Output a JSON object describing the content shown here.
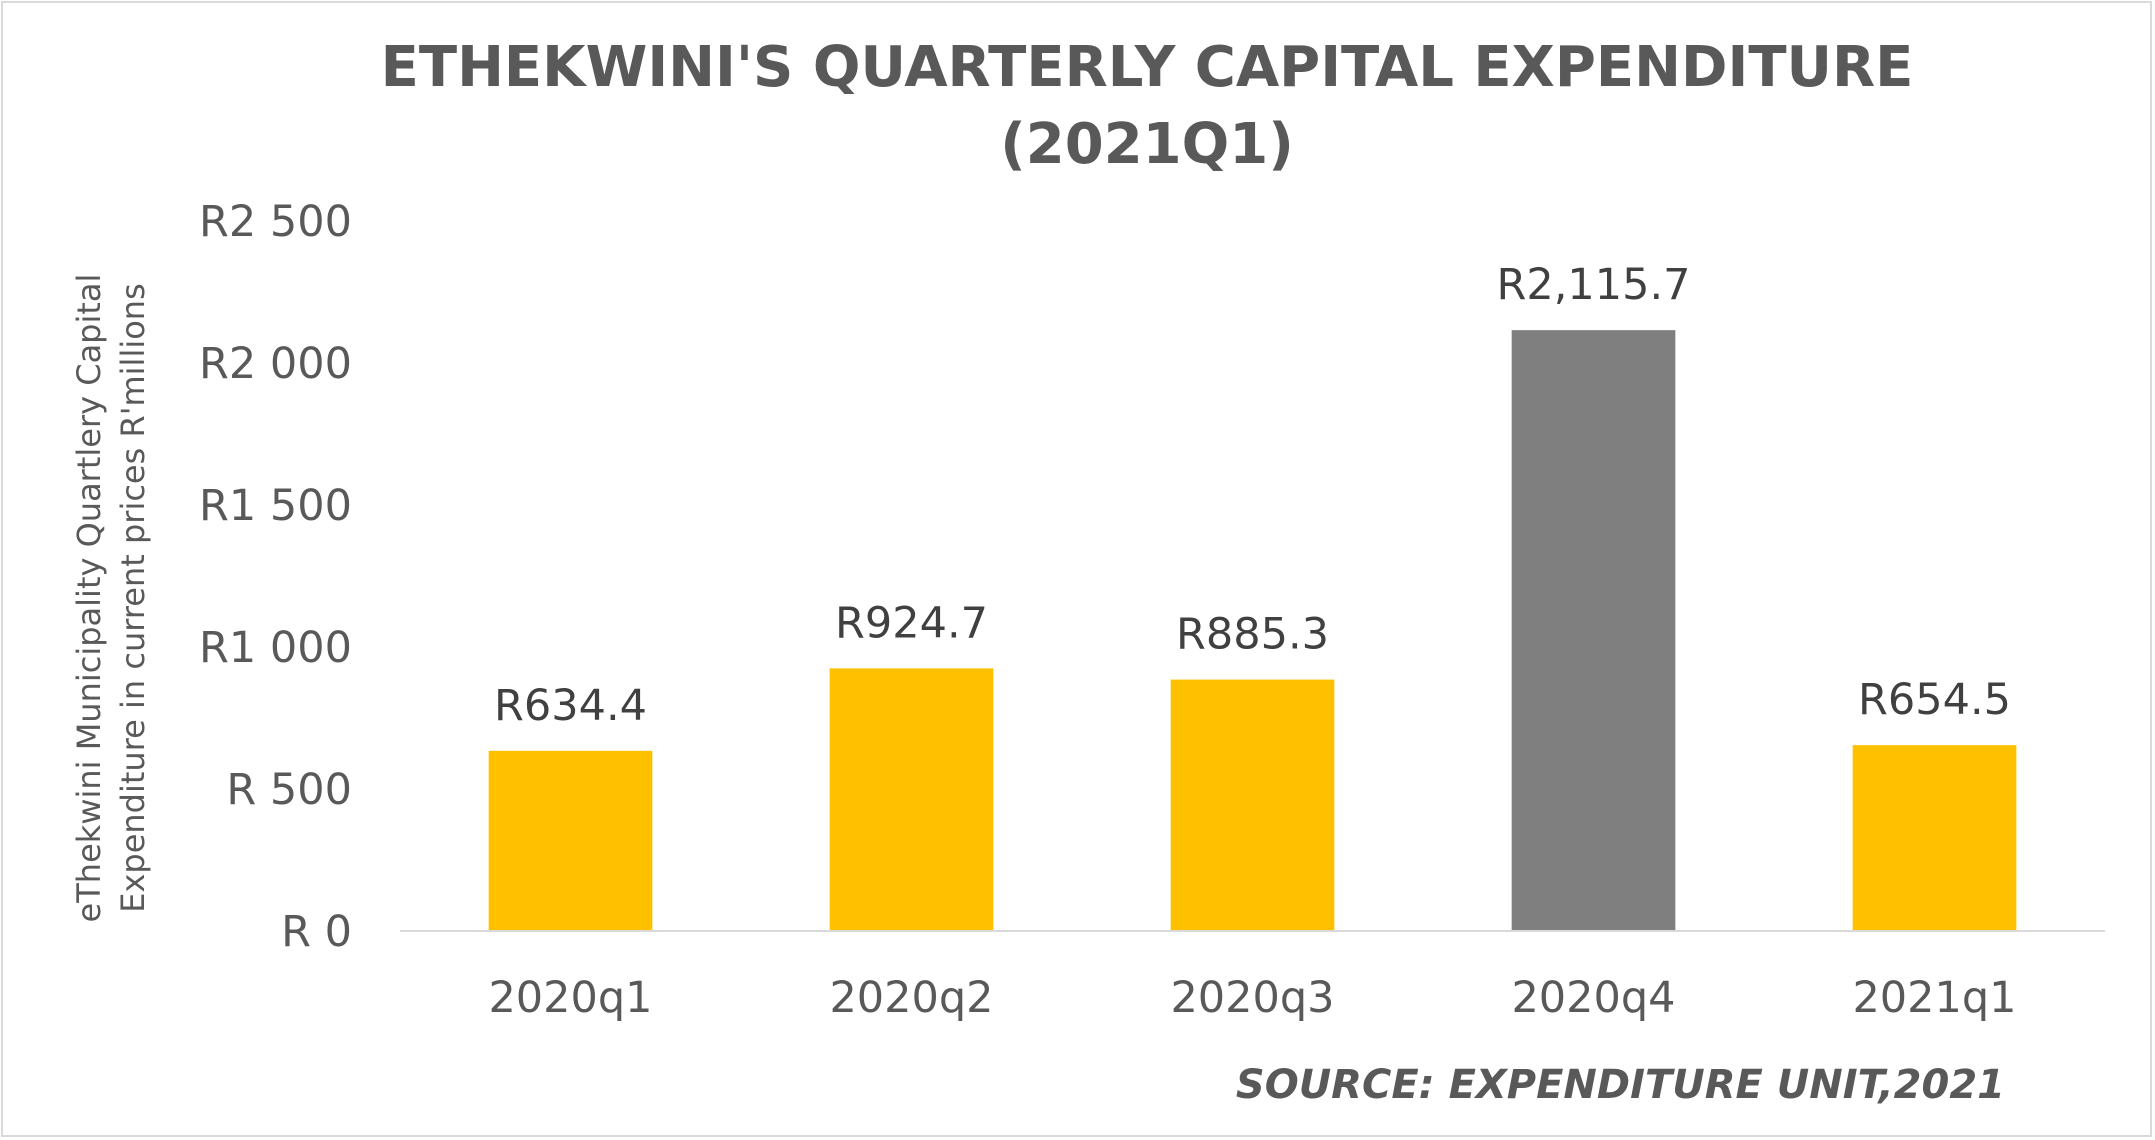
{
  "chart_data": {
    "type": "bar",
    "title_lines": [
      "ETHEKWINI'S QUARTERLY CAPITAL EXPENDITURE",
      "(2021Q1)"
    ],
    "ylabel_lines": [
      "eThekwini Municipality Quartlery Capital",
      "Expenditure in current prices R'millions"
    ],
    "xlabel": "",
    "categories": [
      "2020q1",
      "2020q2",
      "2020q3",
      "2020q4",
      "2021q1"
    ],
    "values": [
      634.4,
      924.7,
      885.3,
      2115.7,
      654.5
    ],
    "data_labels": [
      "R634.4",
      "R924.7",
      "R885.3",
      "R2,115.7",
      "R654.5"
    ],
    "bar_colors": [
      "#ffc000",
      "#ffc000",
      "#ffc000",
      "#7f7f7f",
      "#ffc000"
    ],
    "ylim": [
      0,
      2500
    ],
    "yticks": [
      0,
      500,
      1000,
      1500,
      2000,
      2500
    ],
    "ytick_labels": [
      "R 0",
      "R 500",
      "R1 000",
      "R1 500",
      "R2 000",
      "R2 500"
    ],
    "grid": false,
    "legend": "none",
    "source": "SOURCE: EXPENDITURE UNIT,2021"
  }
}
